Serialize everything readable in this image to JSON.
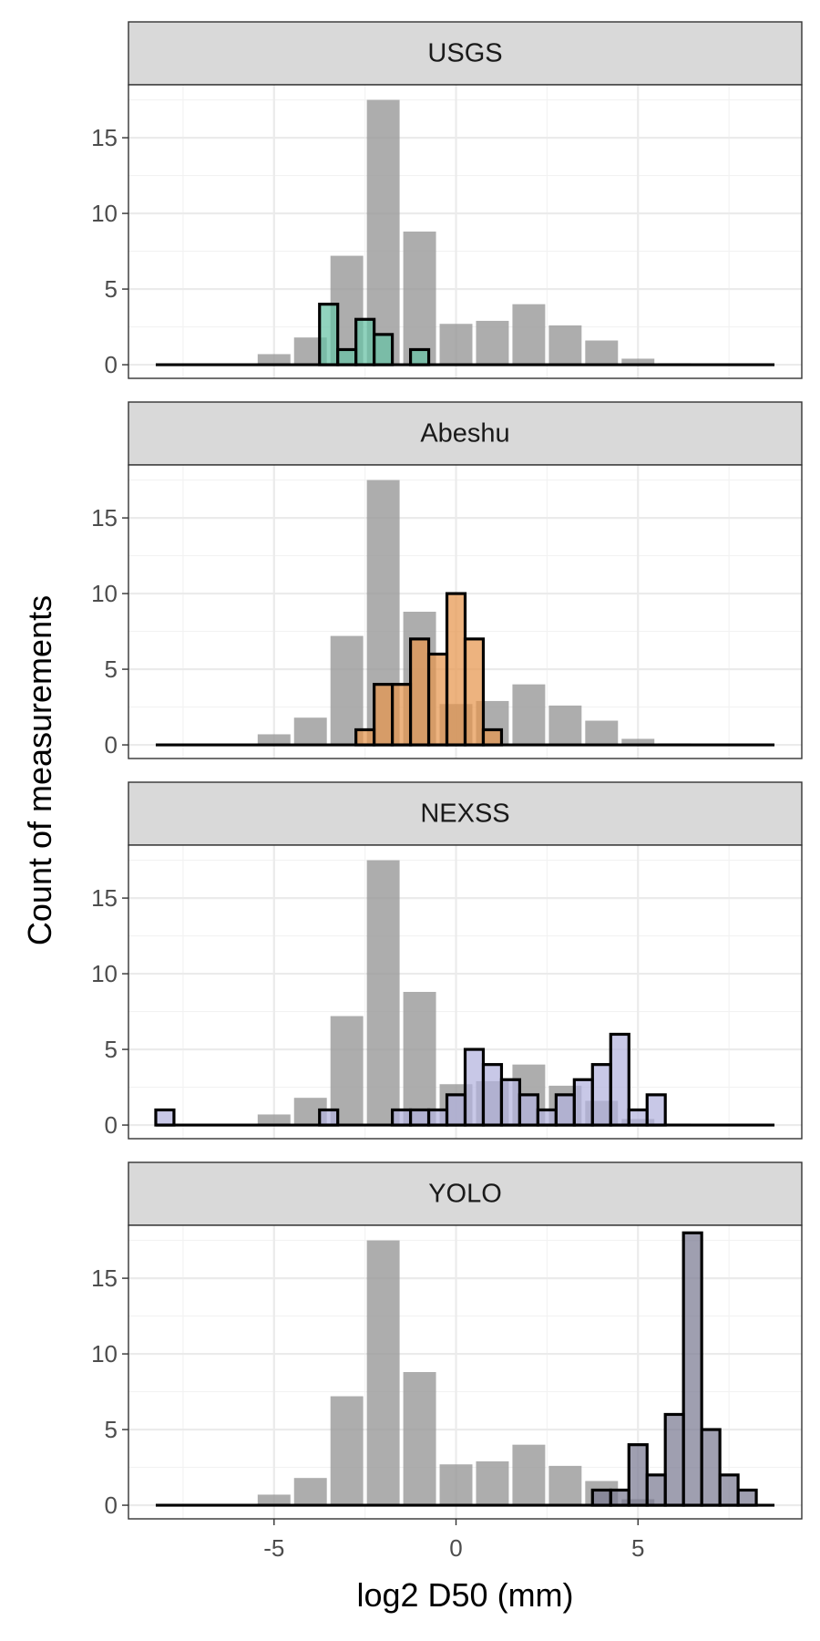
{
  "chart_data": {
    "type": "bar",
    "xlabel": "log2 D50 (mm)",
    "ylabel": "Count of measurements",
    "xlim": [
      -9,
      9.5
    ],
    "ylim": [
      -0.9,
      18.5
    ],
    "x_ticks": [
      -5,
      0,
      5
    ],
    "x_tick_labels": [
      "-5",
      "0",
      "5"
    ],
    "y_ticks": [
      0,
      5,
      10,
      15
    ],
    "y_tick_labels": [
      "0",
      "5",
      "10",
      "15"
    ],
    "grid": true,
    "legend": "none",
    "background_bins": {
      "bin_width": 0.9,
      "x": [
        -8.0,
        -7.0,
        -6.0,
        -5.0,
        -4.0,
        -3.0,
        -2.0,
        -1.0,
        0.0,
        1.0,
        2.0,
        3.0,
        4.0,
        5.0,
        6.0,
        7.0,
        8.0
      ],
      "values": [
        0,
        0,
        0,
        0.7,
        1.8,
        7.2,
        17.5,
        8.8,
        2.7,
        2.9,
        4.0,
        2.6,
        1.6,
        0.4,
        0.1,
        0,
        0
      ],
      "color": "#999999"
    },
    "facets": [
      {
        "label": "USGS",
        "color": "#66c2a5",
        "bin_width": 0.5,
        "x": [
          -8.0,
          -7.5,
          -7.0,
          -6.5,
          -6.0,
          -5.5,
          -5.0,
          -4.5,
          -4.0,
          -3.5,
          -3.0,
          -2.5,
          -2.0,
          -1.5,
          -1.0,
          -0.5,
          0.0,
          0.5,
          1.0,
          1.5,
          2.0,
          2.5,
          3.0,
          3.5,
          4.0,
          4.5,
          5.0,
          5.5,
          6.0,
          6.5,
          7.0,
          7.5,
          8.0,
          8.5
        ],
        "values": [
          0,
          0,
          0,
          0,
          0,
          0,
          0,
          0,
          0,
          4,
          1,
          3,
          2,
          0,
          1,
          0,
          0,
          0,
          0,
          0,
          0,
          0,
          0,
          0,
          0,
          0,
          0,
          0,
          0,
          0,
          0,
          0,
          0,
          0
        ]
      },
      {
        "label": "Abeshu",
        "color": "#e6964e",
        "bin_width": 0.5,
        "x": [
          -8.0,
          -7.5,
          -7.0,
          -6.5,
          -6.0,
          -5.5,
          -5.0,
          -4.5,
          -4.0,
          -3.5,
          -3.0,
          -2.5,
          -2.0,
          -1.5,
          -1.0,
          -0.5,
          0.0,
          0.5,
          1.0,
          1.5,
          2.0,
          2.5,
          3.0,
          3.5,
          4.0,
          4.5,
          5.0,
          5.5,
          6.0,
          6.5,
          7.0,
          7.5,
          8.0,
          8.5
        ],
        "values": [
          0,
          0,
          0,
          0,
          0,
          0,
          0,
          0,
          0,
          0,
          0,
          1,
          4,
          4,
          7,
          6,
          10,
          7,
          1,
          0,
          0,
          0,
          0,
          0,
          0,
          0,
          0,
          0,
          0,
          0,
          0,
          0,
          0,
          0
        ]
      },
      {
        "label": "NEXSS",
        "color": "#b3b3de",
        "bin_width": 0.5,
        "x": [
          -8.0,
          -7.5,
          -7.0,
          -6.5,
          -6.0,
          -5.5,
          -5.0,
          -4.5,
          -4.0,
          -3.5,
          -3.0,
          -2.5,
          -2.0,
          -1.5,
          -1.0,
          -0.5,
          0.0,
          0.5,
          1.0,
          1.5,
          2.0,
          2.5,
          3.0,
          3.5,
          4.0,
          4.5,
          5.0,
          5.5,
          6.0,
          6.5,
          7.0,
          7.5,
          8.0,
          8.5
        ],
        "values": [
          1,
          0,
          0,
          0,
          0,
          0,
          0,
          0,
          0,
          1,
          0,
          0,
          0,
          1,
          1,
          1,
          2,
          5,
          4,
          3,
          2,
          1,
          2,
          3,
          4,
          6,
          1,
          2,
          0,
          0,
          0,
          0,
          0,
          0
        ]
      },
      {
        "label": "YOLO",
        "color": "#7a7a92",
        "bin_width": 0.5,
        "x": [
          -8.0,
          -7.5,
          -7.0,
          -6.5,
          -6.0,
          -5.5,
          -5.0,
          -4.5,
          -4.0,
          -3.5,
          -3.0,
          -2.5,
          -2.0,
          -1.5,
          -1.0,
          -0.5,
          0.0,
          0.5,
          1.0,
          1.5,
          2.0,
          2.5,
          3.0,
          3.5,
          4.0,
          4.5,
          5.0,
          5.5,
          6.0,
          6.5,
          7.0,
          7.5,
          8.0,
          8.5
        ],
        "values": [
          0,
          0,
          0,
          0,
          0,
          0,
          0,
          0,
          0,
          0,
          0,
          0,
          0,
          0,
          0,
          0,
          0,
          0,
          0,
          0,
          0,
          0,
          0,
          0,
          1,
          1,
          4,
          2,
          6,
          18,
          5,
          2,
          1,
          0
        ]
      }
    ]
  }
}
